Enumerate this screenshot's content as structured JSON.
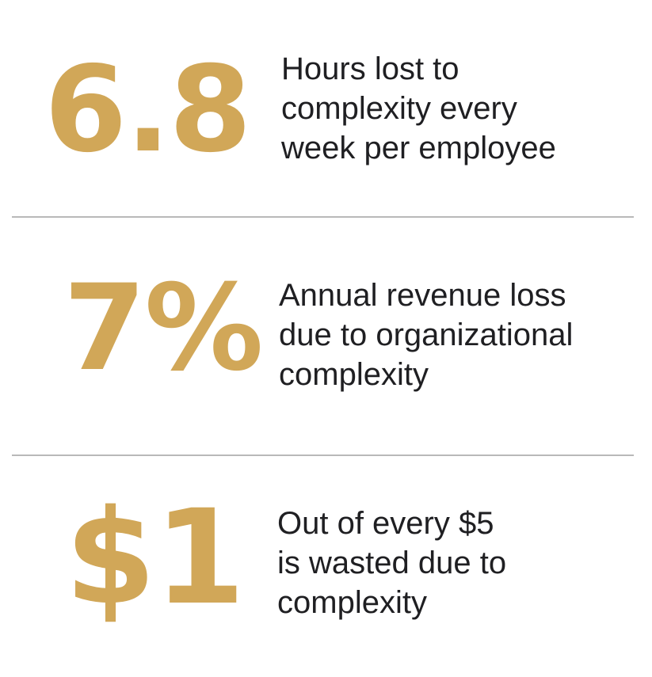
{
  "colors": {
    "accent": "#d1a758",
    "text": "#1f1f22",
    "divider": "#b9b9b9",
    "background": "#ffffff"
  },
  "stats": [
    {
      "value": "6.8",
      "lines": [
        "Hours lost to",
        "complexity every",
        "week per employee"
      ]
    },
    {
      "value": "7%",
      "lines": [
        "Annual revenue loss",
        "due to organizational",
        "complexity"
      ]
    },
    {
      "value": "$1",
      "lines": [
        "Out of every $5",
        "is wasted due to",
        "complexity"
      ]
    }
  ]
}
